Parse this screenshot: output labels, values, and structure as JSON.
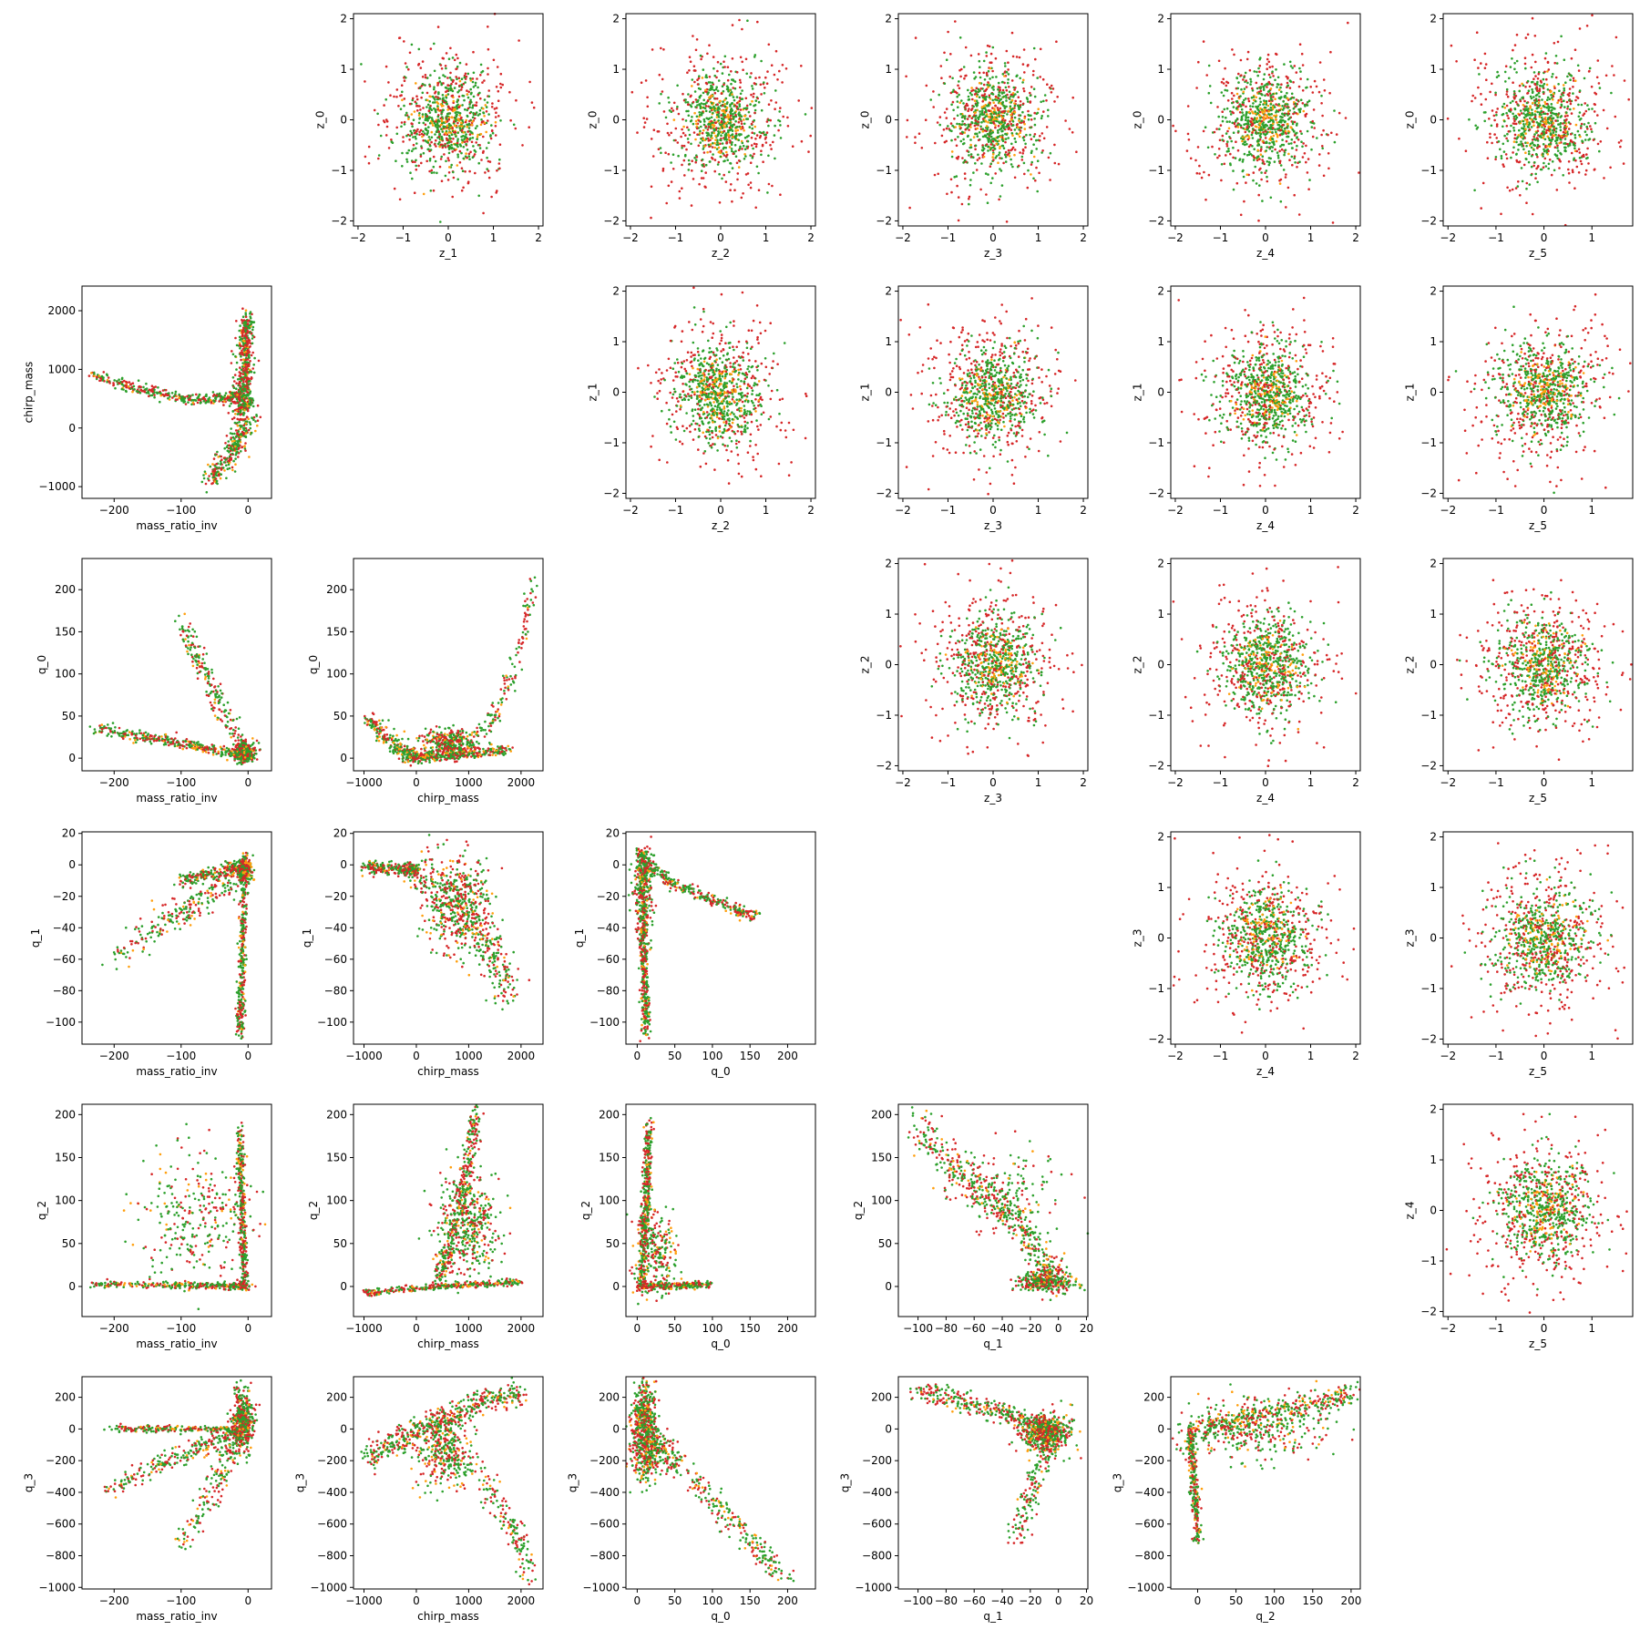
{
  "colors": {
    "green": "#2ca02c",
    "orange": "#ff9f0e",
    "red": "#d62728",
    "axis": "#000000"
  },
  "chart_data": {
    "type": "scatter",
    "layout": "pair-plot (upper triangle: z_i vs z_j, lower triangle: parameter vs parameter)",
    "series_colors": [
      "green",
      "orange",
      "red"
    ],
    "upper_panels": [
      {
        "row": 0,
        "col": 1,
        "xlabel": "z_1",
        "ylabel": "z_0"
      },
      {
        "row": 0,
        "col": 2,
        "xlabel": "z_2",
        "ylabel": "z_0"
      },
      {
        "row": 0,
        "col": 3,
        "xlabel": "z_3",
        "ylabel": "z_0"
      },
      {
        "row": 0,
        "col": 4,
        "xlabel": "z_4",
        "ylabel": "z_0"
      },
      {
        "row": 0,
        "col": 5,
        "xlabel": "z_5",
        "ylabel": "z_0"
      },
      {
        "row": 1,
        "col": 2,
        "xlabel": "z_2",
        "ylabel": "z_1"
      },
      {
        "row": 1,
        "col": 3,
        "xlabel": "z_3",
        "ylabel": "z_1"
      },
      {
        "row": 1,
        "col": 4,
        "xlabel": "z_4",
        "ylabel": "z_1"
      },
      {
        "row": 1,
        "col": 5,
        "xlabel": "z_5",
        "ylabel": "z_1"
      },
      {
        "row": 2,
        "col": 3,
        "xlabel": "z_3",
        "ylabel": "z_2"
      },
      {
        "row": 2,
        "col": 4,
        "xlabel": "z_4",
        "ylabel": "z_2"
      },
      {
        "row": 2,
        "col": 5,
        "xlabel": "z_5",
        "ylabel": "z_2"
      },
      {
        "row": 3,
        "col": 4,
        "xlabel": "z_4",
        "ylabel": "z_3"
      },
      {
        "row": 3,
        "col": 5,
        "xlabel": "z_5",
        "ylabel": "z_3"
      },
      {
        "row": 4,
        "col": 5,
        "xlabel": "z_5",
        "ylabel": "z_4"
      }
    ],
    "upper_axes": {
      "z_range": [
        -2.1,
        2.1
      ],
      "z5_range": [
        -2.1,
        1.85
      ],
      "ticks": [
        -2,
        -1,
        0,
        1,
        2
      ],
      "z5_xticks": [
        -2,
        -1,
        0,
        1
      ]
    },
    "lower_panels": [
      {
        "row": 1,
        "col": 0,
        "x": "mass_ratio_inv",
        "y": "chirp_mass"
      },
      {
        "row": 2,
        "col": 0,
        "x": "mass_ratio_inv",
        "y": "q_0"
      },
      {
        "row": 2,
        "col": 1,
        "x": "chirp_mass",
        "y": "q_0"
      },
      {
        "row": 3,
        "col": 0,
        "x": "mass_ratio_inv",
        "y": "q_1"
      },
      {
        "row": 3,
        "col": 1,
        "x": "chirp_mass",
        "y": "q_1"
      },
      {
        "row": 3,
        "col": 2,
        "x": "q_0",
        "y": "q_1"
      },
      {
        "row": 4,
        "col": 0,
        "x": "mass_ratio_inv",
        "y": "q_2"
      },
      {
        "row": 4,
        "col": 1,
        "x": "chirp_mass",
        "y": "q_2"
      },
      {
        "row": 4,
        "col": 2,
        "x": "q_0",
        "y": "q_2"
      },
      {
        "row": 4,
        "col": 3,
        "x": "q_1",
        "y": "q_2"
      },
      {
        "row": 5,
        "col": 0,
        "x": "mass_ratio_inv",
        "y": "q_3"
      },
      {
        "row": 5,
        "col": 1,
        "x": "chirp_mass",
        "y": "q_3"
      },
      {
        "row": 5,
        "col": 2,
        "x": "q_0",
        "y": "q_3"
      },
      {
        "row": 5,
        "col": 3,
        "x": "q_1",
        "y": "q_3"
      },
      {
        "row": 5,
        "col": 4,
        "x": "q_2",
        "y": "q_3"
      }
    ],
    "variables": {
      "mass_ratio_inv": {
        "range": [
          -248,
          35
        ],
        "ticks": [
          -200,
          -100,
          0
        ]
      },
      "chirp_mass": {
        "range": [
          -1200,
          2420
        ],
        "ticks": [
          -1000,
          0,
          1000,
          2000
        ]
      },
      "q_0": {
        "range": [
          -15,
          237
        ],
        "ticks": [
          0,
          50,
          100,
          150,
          200
        ]
      },
      "q_1": {
        "range": [
          -114,
          21
        ],
        "ticks": [
          -100,
          -80,
          -60,
          -40,
          -20,
          0,
          20
        ]
      },
      "q_2": {
        "range": [
          -35,
          212
        ],
        "ticks": [
          0,
          50,
          100,
          150,
          200
        ]
      },
      "q_3": {
        "range": [
          -1010,
          330
        ],
        "ticks": [
          -1000,
          -800,
          -600,
          -400,
          -200,
          0,
          200
        ]
      }
    },
    "structure_samples": {
      "mass_ratio_inv_vs_chirp_mass": [
        [
          -230,
          900
        ],
        [
          -170,
          700
        ],
        [
          -120,
          550
        ],
        [
          -80,
          470
        ],
        [
          -40,
          520
        ],
        [
          -15,
          700
        ],
        [
          -5,
          1200
        ],
        [
          -2,
          1900
        ],
        [
          -5,
          -300
        ],
        [
          -30,
          -600
        ],
        [
          -50,
          -900
        ]
      ],
      "chirp_mass_vs_q_0": [
        [
          -900,
          40
        ],
        [
          -600,
          20
        ],
        [
          0,
          2
        ],
        [
          600,
          20
        ],
        [
          1000,
          10
        ],
        [
          1500,
          60
        ],
        [
          1900,
          110
        ],
        [
          2200,
          200
        ]
      ],
      "q_0_vs_q_1": [
        [
          5,
          -2
        ],
        [
          40,
          -10
        ],
        [
          80,
          -20
        ],
        [
          120,
          -28
        ],
        [
          150,
          -32
        ],
        [
          8,
          -40
        ],
        [
          10,
          -70
        ],
        [
          10,
          -100
        ]
      ],
      "q_1_vs_q_2": [
        [
          -100,
          180
        ],
        [
          -70,
          130
        ],
        [
          -50,
          110
        ],
        [
          -30,
          80
        ],
        [
          -10,
          30
        ],
        [
          0,
          5
        ]
      ],
      "chirp_mass_vs_q_3": [
        [
          -1000,
          -150
        ],
        [
          -500,
          -100
        ],
        [
          0,
          0
        ],
        [
          500,
          50
        ],
        [
          1000,
          120
        ],
        [
          1500,
          200
        ],
        [
          2000,
          -600
        ],
        [
          2200,
          -900
        ]
      ],
      "q_2_vs_q_3": [
        [
          -10,
          -10
        ],
        [
          -5,
          -400
        ],
        [
          0,
          -700
        ],
        [
          50,
          100
        ],
        [
          100,
          180
        ],
        [
          150,
          200
        ],
        [
          200,
          220
        ]
      ]
    }
  }
}
